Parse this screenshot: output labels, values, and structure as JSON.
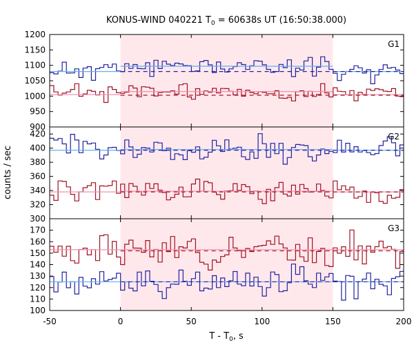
{
  "chart_data": {
    "type": "line",
    "title": "KONUS-WIND 040221 T",
    "title_sub": "0",
    "title_rest": " = 60638s UT (16:50:38.000)",
    "ylabel": "counts / sec",
    "xlabel_main": "T - T",
    "xlabel_sub": "0",
    "xlabel_rest": ", s",
    "xlim": [
      -50,
      200
    ],
    "xticks": [
      -50,
      0,
      50,
      100,
      150,
      200
    ],
    "highlight_interval": [
      0,
      150
    ],
    "colors": {
      "blue": "#2020a0",
      "red": "#a01020",
      "blue_fit": "#60b0f0",
      "red_fit": "#f090b0",
      "highlight": "#ffe8ec"
    },
    "panels": [
      {
        "label": "G1",
        "ylim": [
          900,
          1200
        ],
        "yticks": [
          900,
          950,
          1000,
          1050,
          1100,
          1150,
          1200
        ],
        "series": [
          {
            "color": "blue",
            "mean": 1082,
            "fit_mean": 1080,
            "highlight_mean": 1097,
            "dashed_mean": 1080,
            "amp": 22,
            "seed": 11
          },
          {
            "color": "red",
            "mean": 1010,
            "fit_mean": 1005,
            "highlight_mean": 1015,
            "dashed_mean": 1003,
            "amp": 18,
            "seed": 23
          }
        ]
      },
      {
        "label": "G2",
        "ylim": [
          300,
          430
        ],
        "yticks": [
          300,
          320,
          340,
          360,
          380,
          400,
          420
        ],
        "series": [
          {
            "color": "blue",
            "mean": 398,
            "fit_mean": 397,
            "highlight_mean": 398,
            "dashed_mean": 397,
            "amp": 14,
            "seed": 37
          },
          {
            "color": "red",
            "mean": 339,
            "fit_mean": 338,
            "highlight_mean": 339,
            "dashed_mean": 338,
            "amp": 12,
            "seed": 51
          }
        ]
      },
      {
        "label": "G3",
        "ylim": [
          100,
          180
        ],
        "yticks": [
          100,
          110,
          120,
          130,
          140,
          150,
          160,
          170
        ],
        "series": [
          {
            "color": "red",
            "mean": 153,
            "fit_mean": 153,
            "highlight_mean": 153,
            "dashed_mean": 152,
            "amp": 10,
            "seed": 67
          },
          {
            "color": "blue",
            "mean": 125,
            "fit_mean": 125,
            "highlight_mean": 125,
            "dashed_mean": 125,
            "amp": 9,
            "seed": 79
          }
        ]
      }
    ],
    "bin_width": 2.944
  }
}
